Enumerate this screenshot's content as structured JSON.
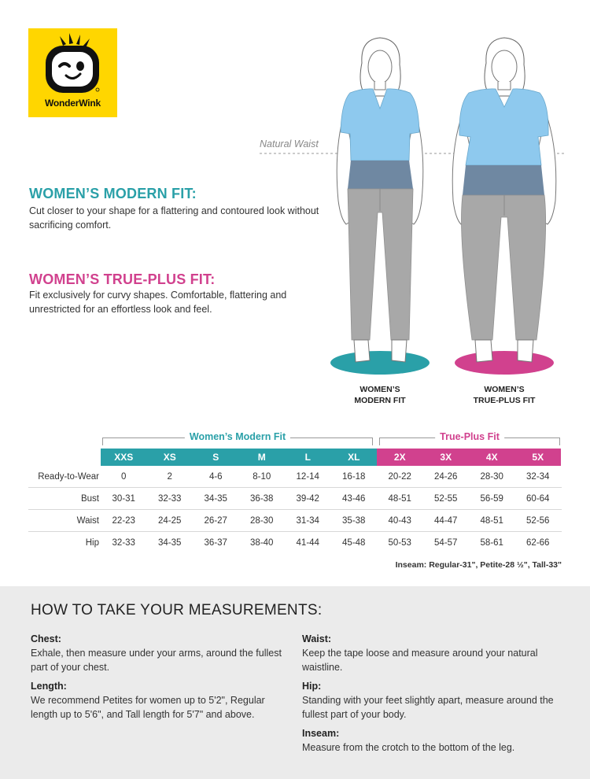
{
  "brand": {
    "name": "WonderWink"
  },
  "colors": {
    "modern": "#2aa0a8",
    "plus": "#d1418e",
    "logo_bg": "#ffd600"
  },
  "fits": {
    "modern": {
      "title": "WOMEN’S MODERN FIT:",
      "description": "Cut closer to your shape for a flattering and contoured look without sacrificing comfort."
    },
    "plus": {
      "title": "WOMEN’S TRUE-PLUS FIT:",
      "description": "Fit exclusively for curvy shapes. Comfortable, flattering and unrestricted for an effortless look and feel."
    }
  },
  "illustration": {
    "natural_waist_label": "Natural Waist",
    "caption_modern_line1": "WOMEN’S",
    "caption_modern_line2": "MODERN FIT",
    "caption_plus_line1": "WOMEN’S",
    "caption_plus_line2": "TRUE-PLUS FIT"
  },
  "size_table": {
    "group_modern": "Women’s Modern Fit",
    "group_plus": "True-Plus Fit",
    "sizes_modern": [
      "XXS",
      "XS",
      "S",
      "M",
      "L",
      "XL"
    ],
    "sizes_plus": [
      "2X",
      "3X",
      "4X",
      "5X"
    ],
    "rows": [
      {
        "label": "Ready-to-Wear",
        "values": [
          "0",
          "2",
          "4-6",
          "8-10",
          "12-14",
          "16-18",
          "20-22",
          "24-26",
          "28-30",
          "32-34"
        ]
      },
      {
        "label": "Bust",
        "values": [
          "30-31",
          "32-33",
          "34-35",
          "36-38",
          "39-42",
          "43-46",
          "48-51",
          "52-55",
          "56-59",
          "60-64"
        ]
      },
      {
        "label": "Waist",
        "values": [
          "22-23",
          "24-25",
          "26-27",
          "28-30",
          "31-34",
          "35-38",
          "40-43",
          "44-47",
          "48-51",
          "52-56"
        ]
      },
      {
        "label": "Hip",
        "values": [
          "32-33",
          "34-35",
          "36-37",
          "38-40",
          "41-44",
          "45-48",
          "50-53",
          "54-57",
          "58-61",
          "62-66"
        ]
      }
    ],
    "inseam_note": "Inseam: Regular-31\",  Petite-28 ½\",  Tall-33\""
  },
  "measurements": {
    "title": "HOW TO TAKE YOUR MEASUREMENTS:",
    "chest": {
      "label": "Chest:",
      "text": "Exhale, then measure under your arms, around the fullest part of your chest."
    },
    "length": {
      "label": "Length:",
      "text": "We recommend Petites for women up to 5'2\", Regular length up to 5'6\", and Tall length for 5'7\" and above."
    },
    "waist": {
      "label": "Waist:",
      "text": "Keep the tape loose and measure around your natural waistline."
    },
    "hip": {
      "label": "Hip:",
      "text": "Standing with your feet slightly apart, measure around the fullest part of your body."
    },
    "inseam": {
      "label": "Inseam:",
      "text": "Measure from the crotch to the bottom of the leg."
    }
  }
}
